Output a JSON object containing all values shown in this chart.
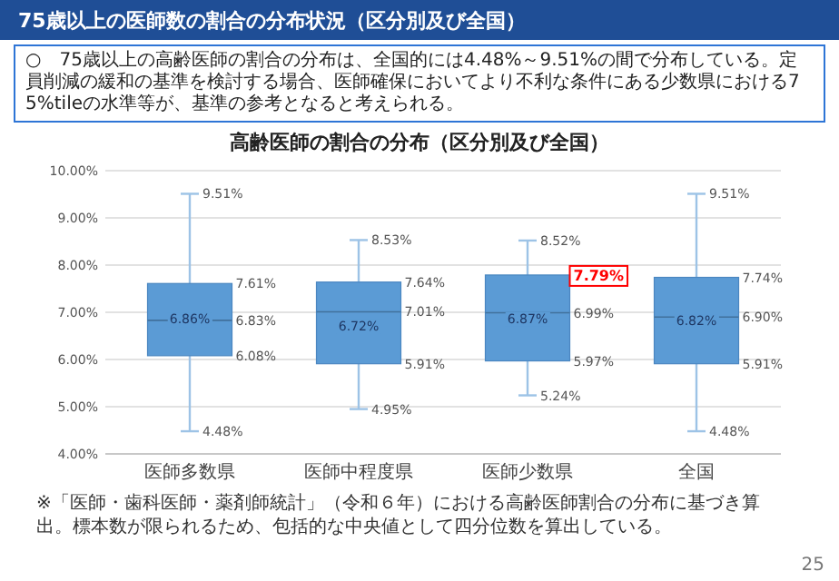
{
  "chart_data": {
    "type": "box",
    "title": "75歳以上の医師数の割合の分布状況（区分別及び全国）",
    "subtitle": "高齢医師の割合の分布（区分別及び全国）",
    "categories": [
      "医師多数県",
      "医師中程度県",
      "医師少数県",
      "全国"
    ],
    "color": "#5b9bd5",
    "boxes": [
      {
        "low": 4.48,
        "q1": 6.08,
        "median": 6.83,
        "q3": 7.61,
        "high": 9.51,
        "mean": 6.86
      },
      {
        "low": 4.95,
        "q1": 5.91,
        "median": 7.01,
        "q3": 7.64,
        "high": 8.53,
        "mean": 6.72
      },
      {
        "low": 5.24,
        "q1": 5.97,
        "median": 6.99,
        "q3": 7.79,
        "high": 8.52,
        "mean": 6.87
      },
      {
        "low": 4.48,
        "q1": 5.91,
        "median": 6.9,
        "q3": 7.74,
        "high": 9.51,
        "mean": 6.82
      }
    ],
    "value_labels": [
      {
        "low": "4.48%",
        "q1": "6.08%",
        "median": "6.83%",
        "q3": "7.61%",
        "high": "9.51%",
        "mean": "6.86%"
      },
      {
        "low": "4.95%",
        "q1": "5.91%",
        "median": "7.01%",
        "q3": "7.64%",
        "high": "8.53%",
        "mean": "6.72%"
      },
      {
        "low": "5.24%",
        "q1": "5.97%",
        "median": "6.99%",
        "q3": null,
        "high": "8.52%",
        "mean": "6.87%"
      },
      {
        "low": "4.48%",
        "q1": "5.91%",
        "median": "6.90%",
        "q3": "7.74%",
        "high": "9.51%",
        "mean": "6.82%"
      }
    ],
    "ylim": [
      4,
      10
    ],
    "yticks": [
      {
        "value": 4,
        "label": "4.00%"
      },
      {
        "value": 5,
        "label": "5.00%"
      },
      {
        "value": 6,
        "label": "6.00%"
      },
      {
        "value": 7,
        "label": "7.00%"
      },
      {
        "value": 8,
        "label": "8.00%"
      },
      {
        "value": 9,
        "label": "9.00%"
      },
      {
        "value": 10,
        "label": "10.00%"
      }
    ],
    "grid": "y",
    "annotations": [
      "○　75歳以上の高齢医師の割合の分布は、全国的には4.48%～9.51%の間で分布している。定員削減の緩和の基準を検討する場合、医師確保においてより不利な条件にある少数県における75%tileの水準等が、基準の参考となると考えられる。",
      "7.79%",
      "※「医師・歯科医師・薬剤師統計」（令和６年）における高齢医師割合の分布に基づき算出。標本数が限られるため、包括的な中央値として四分位数を算出している。",
      "25"
    ]
  }
}
